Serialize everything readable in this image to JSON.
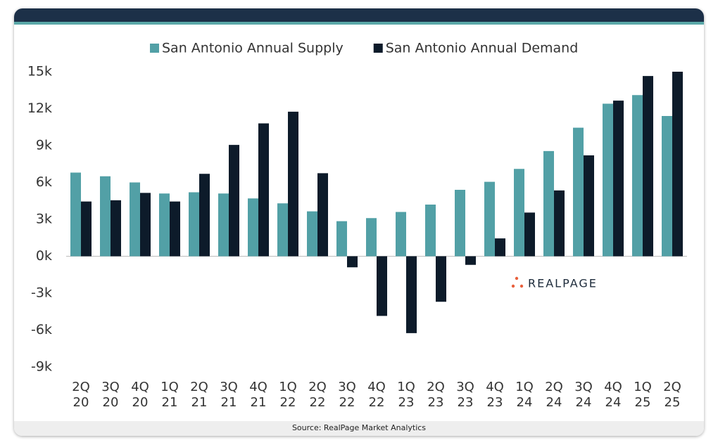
{
  "chart_data": {
    "type": "bar",
    "categories": [
      "2Q 20",
      "3Q 20",
      "4Q 20",
      "1Q 21",
      "2Q 21",
      "3Q 21",
      "4Q 21",
      "1Q 22",
      "2Q 22",
      "3Q 22",
      "4Q 22",
      "1Q 23",
      "2Q 23",
      "3Q 23",
      "4Q 23",
      "1Q 24",
      "2Q 24",
      "3Q 24",
      "4Q 24",
      "1Q 25",
      "2Q 25"
    ],
    "series": [
      {
        "name": "San Antonio Annual Supply",
        "color": "#52a0a6",
        "values": [
          6800,
          6500,
          6000,
          5100,
          5200,
          5100,
          4700,
          4300,
          3650,
          2850,
          3100,
          3600,
          4200,
          5400,
          6050,
          7100,
          8550,
          10450,
          12400,
          13100,
          11400
        ]
      },
      {
        "name": "San Antonio Annual Demand",
        "color": "#0d1b2a",
        "values": [
          4450,
          4550,
          5150,
          4450,
          6700,
          9050,
          10800,
          11750,
          6750,
          -900,
          -4850,
          -6250,
          -3700,
          -700,
          1450,
          3550,
          5350,
          8200,
          12650,
          14650,
          15000
        ]
      }
    ],
    "ylim": [
      -9000,
      15000
    ],
    "yticks": [
      {
        "value": 15000,
        "label": "15k"
      },
      {
        "value": 12000,
        "label": "12k"
      },
      {
        "value": 9000,
        "label": "9k"
      },
      {
        "value": 6000,
        "label": "6k"
      },
      {
        "value": 3000,
        "label": "3k"
      },
      {
        "value": 0,
        "label": "0k"
      },
      {
        "value": -3000,
        "label": "-3k"
      },
      {
        "value": -6000,
        "label": "-6k"
      },
      {
        "value": -9000,
        "label": "-9k"
      }
    ],
    "logo": "REALPAGE",
    "source": "Source: RealPage Market Analytics"
  }
}
